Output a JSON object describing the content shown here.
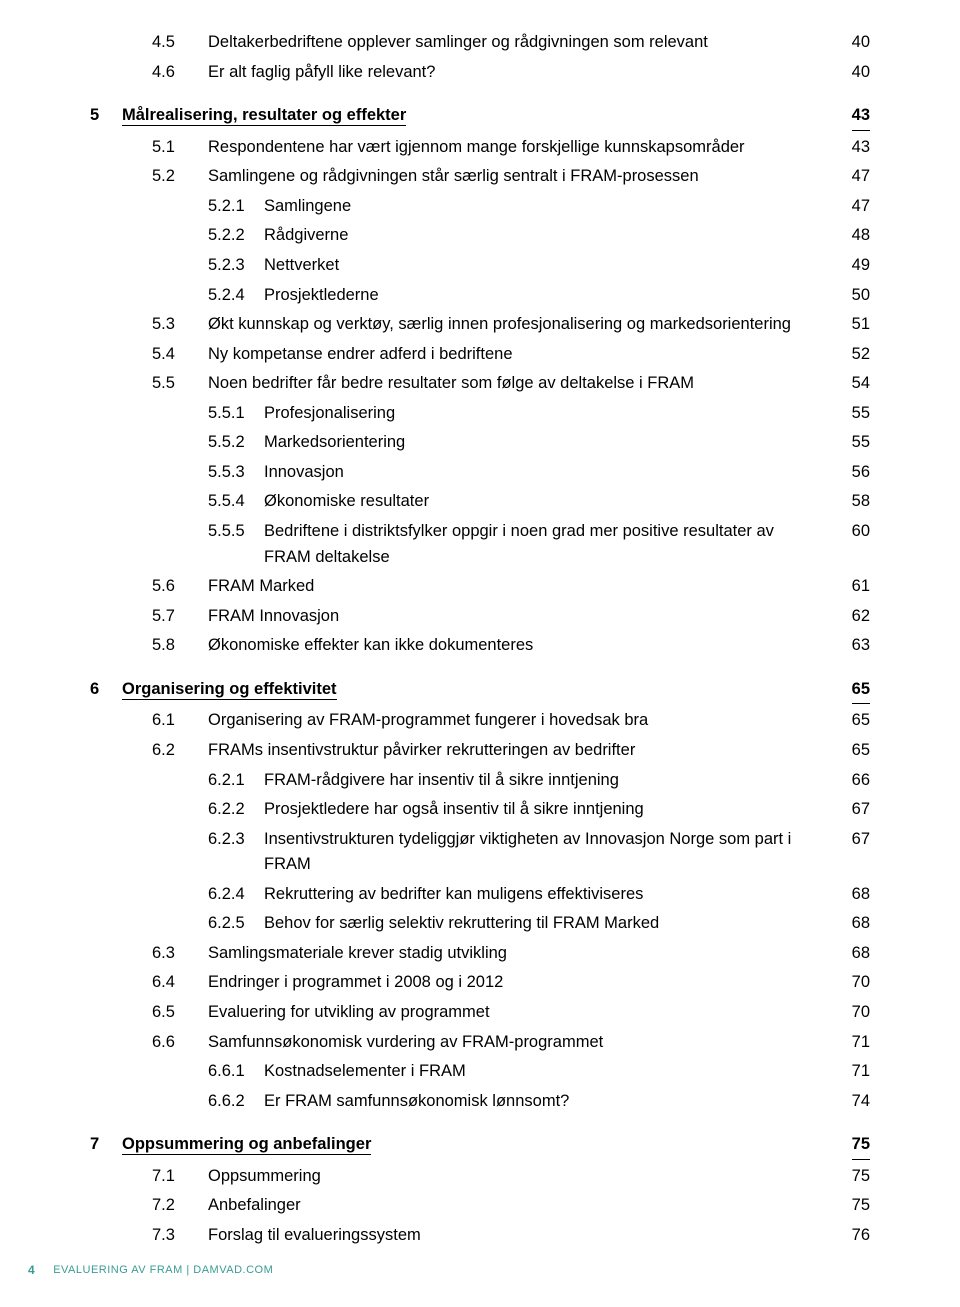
{
  "colors": {
    "accent": "#3a9b94",
    "text": "#000000",
    "background": "#ffffff"
  },
  "typography": {
    "base_fontsize_pt": 12,
    "footer_fontsize_pt": 8,
    "font_family": "Arial"
  },
  "footer": {
    "page_number": "4",
    "text": "EVALUERING AV FRAM | DAMVAD.COM"
  },
  "toc": [
    {
      "level": 1,
      "num": "4.5",
      "title": "Deltakerbedriftene opplever samlinger og rådgivningen som relevant",
      "page": "40"
    },
    {
      "level": 1,
      "num": "4.6",
      "title": "Er alt faglig påfyll like relevant?",
      "page": "40"
    },
    {
      "gap": true
    },
    {
      "level": 0,
      "num": "5",
      "title": "Målrealisering, resultater og effekter",
      "page": "43",
      "underlined": true
    },
    {
      "level": 1,
      "num": "5.1",
      "title": "Respondentene har vært igjennom mange forskjellige kunnskapsområder",
      "page": "43"
    },
    {
      "level": 1,
      "num": "5.2",
      "title": "Samlingene og rådgivningen står særlig sentralt i FRAM-prosessen",
      "page": "47"
    },
    {
      "level": 2,
      "num": "5.2.1",
      "title": "Samlingene",
      "page": "47"
    },
    {
      "level": 2,
      "num": "5.2.2",
      "title": "Rådgiverne",
      "page": "48"
    },
    {
      "level": 2,
      "num": "5.2.3",
      "title": "Nettverket",
      "page": "49"
    },
    {
      "level": 2,
      "num": "5.2.4",
      "title": "Prosjektlederne",
      "page": "50"
    },
    {
      "level": 1,
      "num": "5.3",
      "title": "Økt kunnskap og verktøy, særlig innen profesjonalisering og markedsorientering",
      "page": "51"
    },
    {
      "level": 1,
      "num": "5.4",
      "title": "Ny kompetanse endrer adferd i bedriftene",
      "page": "52"
    },
    {
      "level": 1,
      "num": "5.5",
      "title": "Noen bedrifter får bedre resultater som følge av deltakelse i FRAM",
      "page": "54"
    },
    {
      "level": 2,
      "num": "5.5.1",
      "title": "Profesjonalisering",
      "page": "55"
    },
    {
      "level": 2,
      "num": "5.5.2",
      "title": "Markedsorientering",
      "page": "55"
    },
    {
      "level": 2,
      "num": "5.5.3",
      "title": "Innovasjon",
      "page": "56"
    },
    {
      "level": 2,
      "num": "5.5.4",
      "title": "Økonomiske resultater",
      "page": "58"
    },
    {
      "level": 2,
      "num": "5.5.5",
      "title": "Bedriftene i distriktsfylker oppgir i noen grad mer positive resultater av FRAM deltakelse",
      "page": "60"
    },
    {
      "level": 1,
      "num": "5.6",
      "title": "FRAM Marked",
      "page": "61"
    },
    {
      "level": 1,
      "num": "5.7",
      "title": "FRAM Innovasjon",
      "page": "62"
    },
    {
      "level": 1,
      "num": "5.8",
      "title": "Økonomiske effekter kan ikke dokumenteres",
      "page": "63"
    },
    {
      "gap": true
    },
    {
      "level": 0,
      "num": "6",
      "title": "Organisering og effektivitet",
      "page": "65",
      "underlined": true
    },
    {
      "level": 1,
      "num": "6.1",
      "title": "Organisering av FRAM-programmet fungerer i hovedsak bra",
      "page": "65"
    },
    {
      "level": 1,
      "num": "6.2",
      "title": "FRAMs insentivstruktur påvirker rekrutteringen av bedrifter",
      "page": "65"
    },
    {
      "level": 2,
      "num": "6.2.1",
      "title": "FRAM-rådgivere har insentiv til å sikre inntjening",
      "page": "66"
    },
    {
      "level": 2,
      "num": "6.2.2",
      "title": "Prosjektledere har også insentiv til å sikre inntjening",
      "page": "67"
    },
    {
      "level": 2,
      "num": "6.2.3",
      "title": "Insentivstrukturen tydeliggjør viktigheten av Innovasjon Norge som part i FRAM",
      "page": "67"
    },
    {
      "level": 2,
      "num": "6.2.4",
      "title": "Rekruttering av bedrifter kan muligens effektiviseres",
      "page": "68"
    },
    {
      "level": 2,
      "num": "6.2.5",
      "title": "Behov for særlig selektiv rekruttering til FRAM Marked",
      "page": "68"
    },
    {
      "level": 1,
      "num": "6.3",
      "title": "Samlingsmateriale krever stadig utvikling",
      "page": "68"
    },
    {
      "level": 1,
      "num": "6.4",
      "title": "Endringer i programmet i 2008 og i 2012",
      "page": "70"
    },
    {
      "level": 1,
      "num": "6.5",
      "title": "Evaluering for utvikling av programmet",
      "page": "70"
    },
    {
      "level": 1,
      "num": "6.6",
      "title": "Samfunnsøkonomisk vurdering av FRAM-programmet",
      "page": "71"
    },
    {
      "level": 2,
      "num": "6.6.1",
      "title": "Kostnadselementer i FRAM",
      "page": "71"
    },
    {
      "level": 2,
      "num": "6.6.2",
      "title": "Er FRAM samfunnsøkonomisk lønnsomt?",
      "page": "74"
    },
    {
      "gap": true
    },
    {
      "level": 0,
      "num": "7",
      "title": "Oppsummering og anbefalinger",
      "page": "75",
      "underlined": true
    },
    {
      "level": 1,
      "num": "7.1",
      "title": "Oppsummering",
      "page": "75"
    },
    {
      "level": 1,
      "num": "7.2",
      "title": "Anbefalinger",
      "page": "75"
    },
    {
      "level": 1,
      "num": "7.3",
      "title": "Forslag til evalueringssystem",
      "page": "76"
    }
  ]
}
